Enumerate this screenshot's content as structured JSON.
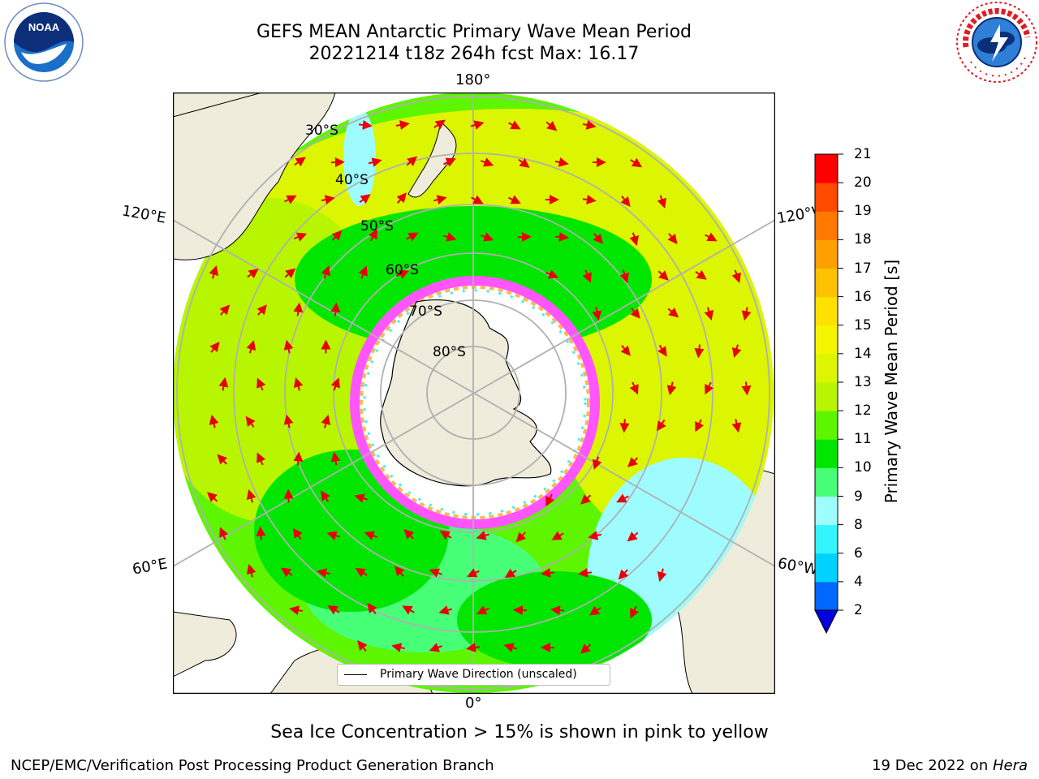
{
  "title": {
    "line1": "GEFS MEAN Antarctic Primary Wave Mean Period",
    "line2": "20221214 t18z 264h fcst   Max: 16.17"
  },
  "logos": {
    "left": "noaa-logo",
    "right": "nws-logo"
  },
  "map": {
    "projection": "south-polar-stereographic",
    "longitude_labels": {
      "top": "180°",
      "bottom": "0°",
      "upper_left": "120°E",
      "lower_left": "60°E",
      "upper_right": "120°W",
      "lower_right": "60°W"
    },
    "latitude_labels": [
      "30°S",
      "40°S",
      "50°S",
      "60°S",
      "70°S",
      "80°S"
    ],
    "legend_entry": "Primary Wave Direction (unscaled)",
    "colors": {
      "land": "#efecdc",
      "sea_ice": "#ffffff",
      "arrow": "#e8000b",
      "grid": "#b0b0b0"
    }
  },
  "colorbar": {
    "label": "Primary Wave Mean Period [s]",
    "ticks": [
      "2",
      "4",
      "6",
      "8",
      "9",
      "10",
      "11",
      "12",
      "13",
      "14",
      "15",
      "16",
      "17",
      "18",
      "19",
      "20",
      "21"
    ],
    "colors": [
      "#0068ff",
      "#00d2ff",
      "#34f4ff",
      "#9efcff",
      "#48ff78",
      "#00e600",
      "#5df500",
      "#b8f500",
      "#dcf500",
      "#f5f500",
      "#ffe100",
      "#ffc200",
      "#ffa000",
      "#ff7800",
      "#ff4a00",
      "#ff0000"
    ],
    "extend_color": "#0000e0"
  },
  "notes": {
    "sea_ice": "Sea Ice Concentration > 15% is shown in pink to yellow"
  },
  "footer": {
    "left": "NCEP/EMC/Verification Post Processing Product Generation Branch",
    "right_date": "19 Dec 2022 on ",
    "right_host": "Hera"
  }
}
